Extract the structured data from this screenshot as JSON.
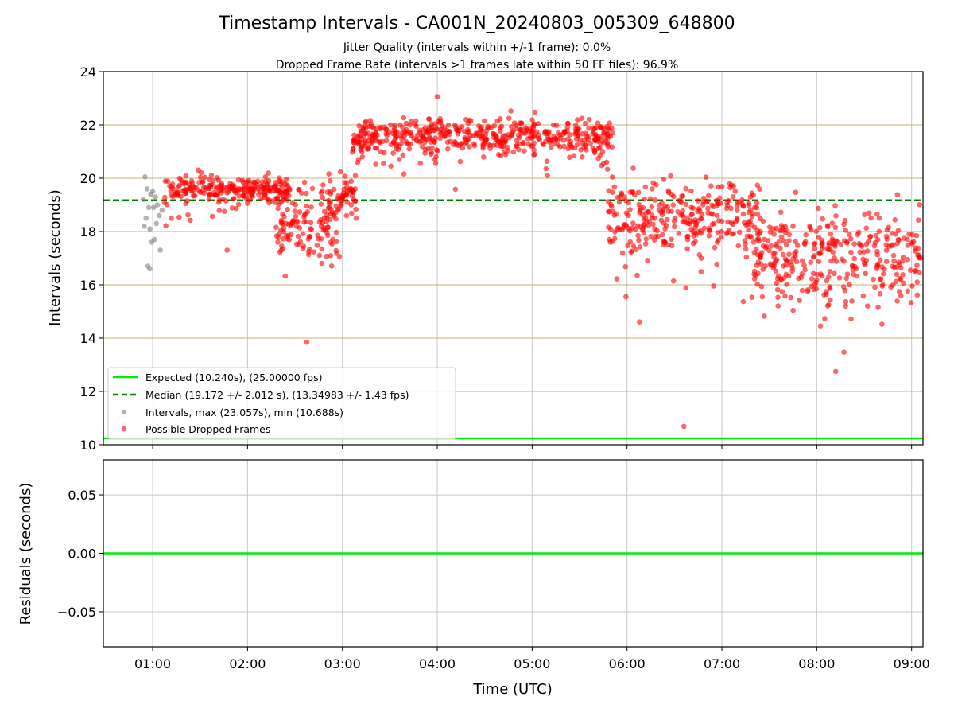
{
  "title": "Timestamp Intervals - CA001N_20240803_005309_648800",
  "subtitle1": "Jitter Quality (intervals within +/-1 frame): 0.0%",
  "subtitle2": "Dropped Frame Rate (intervals >1 frames late within 50 FF files): 96.9%",
  "colors": {
    "expected": "#00ee00",
    "median": "#008000",
    "intervals": "#808080",
    "dropped": "#ff0000",
    "ygrid": "#c8b46e",
    "xgrid": "#c8c8c8"
  },
  "chart_data": [
    {
      "type": "scatter",
      "title": "Timestamp Intervals - CA001N_20240803_005309_648800",
      "xlabel": "",
      "ylabel": "Intervals (seconds)",
      "x_unit": "hours UTC",
      "xlim": [
        0.48,
        9.12
      ],
      "ylim": [
        10,
        24
      ],
      "yticks": [
        10,
        12,
        14,
        16,
        18,
        20,
        22,
        24
      ],
      "grid": true,
      "legend_position": "lower-left",
      "legend": [
        "Expected (10.240s), (25.00000 fps)",
        "Median (19.172 +/- 2.012 s), (13.34983 +/- 1.43 fps)",
        "Intervals, max (23.057s), min (10.688s)",
        "Possible Dropped Frames"
      ],
      "expected_line": 10.24,
      "median_line": 19.172,
      "series": [
        {
          "name": "Intervals, max (23.057s), min (10.688s)",
          "color": "#808080",
          "description": "Intervals within normal range",
          "points": [
            [
              0.92,
              20.05
            ],
            [
              0.94,
              19.6
            ],
            [
              0.9,
              19.2
            ],
            [
              0.96,
              18.9
            ],
            [
              0.93,
              18.5
            ],
            [
              0.91,
              18.2
            ],
            [
              0.97,
              18.1
            ],
            [
              0.99,
              17.6
            ],
            [
              1.02,
              17.7
            ],
            [
              1.08,
              17.3
            ],
            [
              0.95,
              16.7
            ],
            [
              0.97,
              16.6
            ],
            [
              1.0,
              19.5
            ],
            [
              1.03,
              19.3
            ],
            [
              1.05,
              19.0
            ],
            [
              1.07,
              18.6
            ],
            [
              1.1,
              18.8
            ],
            [
              1.01,
              18.9
            ],
            [
              0.98,
              19.4
            ],
            [
              1.04,
              18.3
            ]
          ]
        },
        {
          "name": "Possible Dropped Frames",
          "color": "#ff0000",
          "description": "Dense cloud of dropped-frame intervals: ~19.6 s (01:10-02:30), ~21.6 s (03:05-05:50), ~17-19 s with wide scatter (05:50-09:10)",
          "clusters": [
            {
              "x_from": 1.12,
              "x_to": 2.45,
              "y_center": 19.6,
              "y_spread": 0.35,
              "outlier_low": 17.3
            },
            {
              "x_from": 2.3,
              "x_to": 2.95,
              "y_center": 18.3,
              "y_spread": 1.0,
              "outlier_low": 13.85
            },
            {
              "x_from": 2.85,
              "x_to": 3.15,
              "y_center": 19.2,
              "y_spread": 0.6
            },
            {
              "x_from": 3.1,
              "x_to": 5.85,
              "y_center": 21.6,
              "y_spread": 0.45,
              "outlier_high": 23.06
            },
            {
              "x_from": 5.8,
              "x_to": 7.4,
              "y_center": 18.6,
              "y_spread": 1.0,
              "outlier_low": 10.69
            },
            {
              "x_from": 7.3,
              "x_to": 9.1,
              "y_center": 17.1,
              "y_spread": 1.2,
              "outlier_low": 12.75
            }
          ]
        }
      ],
      "xtick_positions_hours": [
        1,
        2,
        3,
        4,
        5,
        6,
        7,
        8,
        9
      ]
    },
    {
      "type": "line",
      "xlabel": "Time (UTC)",
      "ylabel": "Residuals (seconds)",
      "xlim": [
        0.48,
        9.12
      ],
      "ylim": [
        -0.08,
        0.08
      ],
      "yticks": [
        0.05,
        0.0,
        -0.05
      ],
      "ytick_labels": [
        "0.05",
        "0.00",
        "−0.05"
      ],
      "xticks": [
        "01:00",
        "02:00",
        "03:00",
        "04:00",
        "05:00",
        "06:00",
        "07:00",
        "08:00",
        "09:00"
      ],
      "grid": true,
      "series": [
        {
          "color": "#00ee00",
          "x": [
            0.48,
            9.12
          ],
          "y": [
            0.0,
            0.0
          ]
        }
      ]
    }
  ]
}
